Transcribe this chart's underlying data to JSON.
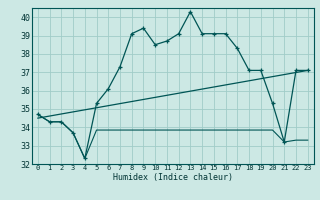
{
  "title": "",
  "xlabel": "Humidex (Indice chaleur)",
  "bg_color": "#cce8e4",
  "grid_color": "#a0ccc8",
  "line_color": "#005555",
  "xlim": [
    -0.5,
    23.5
  ],
  "ylim": [
    32,
    40.5
  ],
  "yticks": [
    32,
    33,
    34,
    35,
    36,
    37,
    38,
    39,
    40
  ],
  "xticks": [
    0,
    1,
    2,
    3,
    4,
    5,
    6,
    7,
    8,
    9,
    10,
    11,
    12,
    13,
    14,
    15,
    16,
    17,
    18,
    19,
    20,
    21,
    22,
    23
  ],
  "humidex_x": [
    0,
    1,
    2,
    3,
    4,
    5,
    6,
    7,
    8,
    9,
    10,
    11,
    12,
    13,
    14,
    15,
    16,
    17,
    18,
    19,
    20,
    21,
    22,
    23
  ],
  "humidex_y": [
    34.7,
    34.3,
    34.3,
    33.7,
    32.3,
    35.3,
    36.1,
    37.3,
    39.1,
    39.4,
    38.5,
    38.7,
    39.1,
    40.3,
    39.1,
    39.1,
    39.1,
    38.3,
    37.1,
    37.1,
    35.3,
    33.2,
    37.1,
    37.1
  ],
  "min_x": [
    0,
    1,
    2,
    3,
    4,
    5,
    6,
    7,
    8,
    9,
    10,
    11,
    12,
    13,
    14,
    15,
    16,
    17,
    18,
    19,
    20,
    21,
    22,
    23
  ],
  "min_y": [
    34.7,
    34.3,
    34.3,
    33.7,
    32.3,
    33.85,
    33.85,
    33.85,
    33.85,
    33.85,
    33.85,
    33.85,
    33.85,
    33.85,
    33.85,
    33.85,
    33.85,
    33.85,
    33.85,
    33.85,
    33.85,
    33.2,
    33.3,
    33.3
  ],
  "trend_x": [
    0,
    23
  ],
  "trend_y": [
    34.5,
    37.1
  ]
}
